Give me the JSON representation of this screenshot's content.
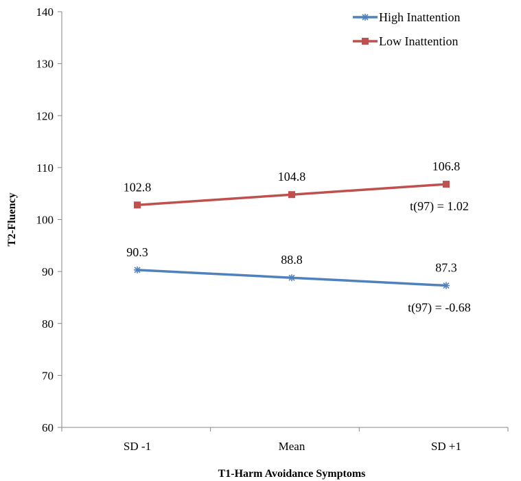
{
  "chart_data": {
    "type": "line",
    "categories": [
      "SD -1",
      "Mean",
      "SD +1"
    ],
    "series": [
      {
        "name": "High Inattention",
        "values": [
          90.3,
          88.8,
          87.3
        ],
        "color": "#4f81bd",
        "marker": "asterisk"
      },
      {
        "name": "Low Inattention",
        "values": [
          102.8,
          104.8,
          106.8
        ],
        "color": "#c0504d",
        "marker": "square"
      }
    ],
    "data_labels": {
      "High Inattention": [
        "90.3",
        "88.8",
        "87.3"
      ],
      "Low Inattention": [
        "102.8",
        "104.8",
        "106.8"
      ]
    },
    "annotations": [
      {
        "text": "t(97) = 1.02",
        "series": "Low Inattention",
        "category": "SD +1"
      },
      {
        "text": "t(97) = -0.68",
        "series": "High Inattention",
        "category": "SD +1"
      }
    ],
    "xlabel": "T1-Harm Avoidance Symptoms",
    "ylabel": "T2-Fluency",
    "ylim": [
      60,
      140
    ],
    "yticks": [
      60,
      70,
      80,
      90,
      100,
      110,
      120,
      130,
      140
    ],
    "grid": false,
    "legend_position": "top-right"
  }
}
